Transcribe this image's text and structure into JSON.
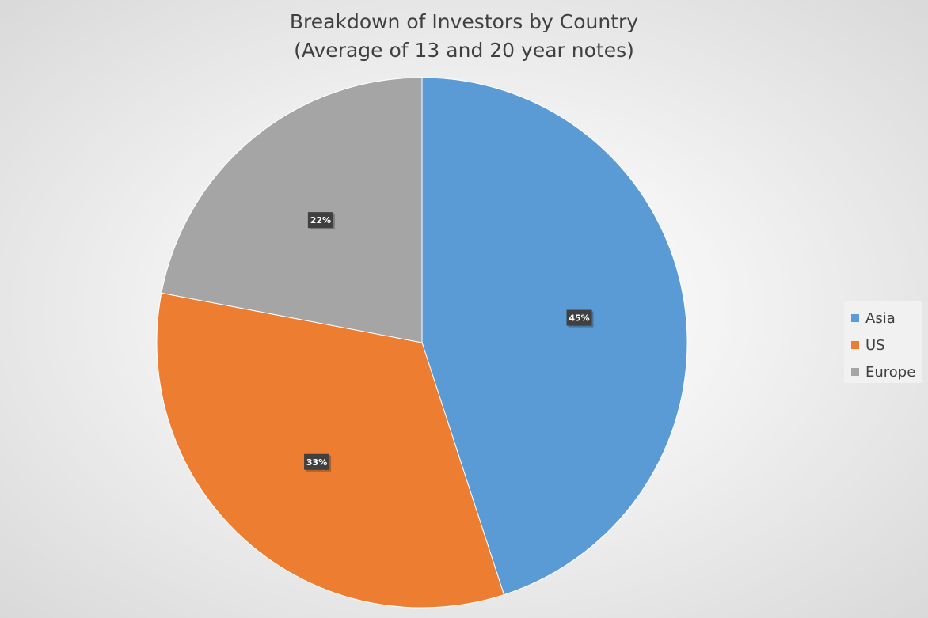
{
  "chart_data": {
    "type": "pie",
    "title": "Breakdown of Investors by Country",
    "subtitle": "(Average of 13 and 20 year notes)",
    "categories": [
      "Asia",
      "US",
      "Europe"
    ],
    "values": [
      45,
      33,
      22
    ],
    "data_labels": [
      "45%",
      "33%",
      "22%"
    ],
    "colors": [
      "#5B9BD5",
      "#ED7D31",
      "#A5A5A5"
    ],
    "legend": "right"
  }
}
